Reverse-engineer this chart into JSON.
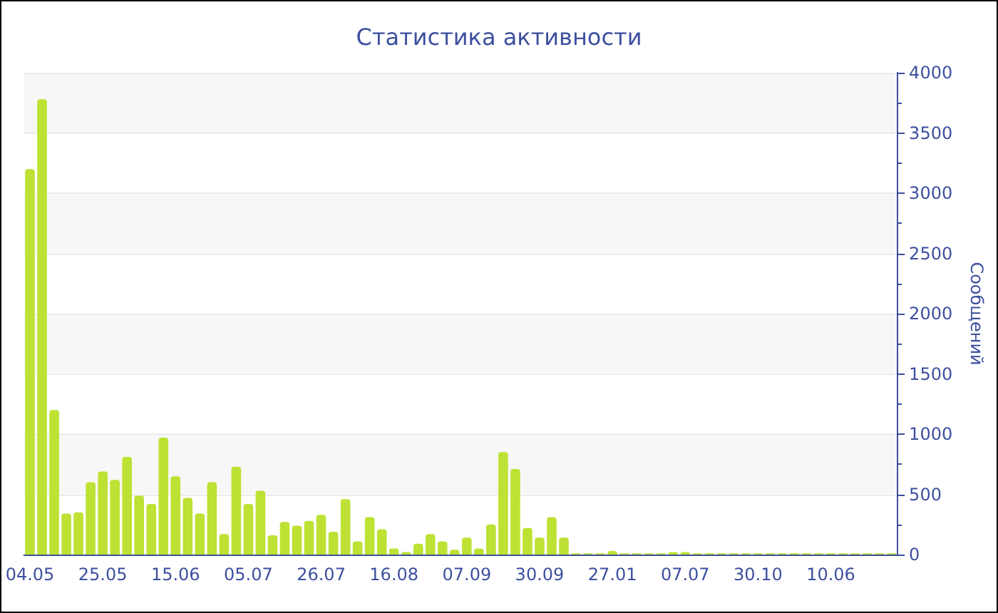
{
  "chart_data": {
    "type": "bar",
    "title": "Статистика активности",
    "ylabel": "Сообщений",
    "categories": [
      "04.05",
      null,
      null,
      null,
      null,
      null,
      "25.05",
      null,
      null,
      null,
      null,
      null,
      "15.06",
      null,
      null,
      null,
      null,
      null,
      "05.07",
      null,
      null,
      null,
      null,
      null,
      "26.07",
      null,
      null,
      null,
      null,
      null,
      "16.08",
      null,
      null,
      null,
      null,
      null,
      "07.09",
      null,
      null,
      null,
      null,
      null,
      "30.09",
      null,
      null,
      null,
      null,
      null,
      "27.01",
      null,
      null,
      null,
      null,
      null,
      "07.07",
      null,
      null,
      null,
      null,
      null,
      "30.10",
      null,
      null,
      null,
      null,
      null,
      "10.06",
      null,
      null,
      null,
      null,
      null
    ],
    "values": [
      3200,
      3780,
      1200,
      340,
      350,
      600,
      690,
      620,
      810,
      490,
      420,
      970,
      650,
      470,
      340,
      600,
      170,
      730,
      420,
      530,
      160,
      270,
      240,
      280,
      330,
      190,
      460,
      110,
      310,
      210,
      50,
      20,
      90,
      170,
      110,
      40,
      140,
      50,
      250,
      850,
      710,
      220,
      140,
      310,
      140,
      10,
      10,
      10,
      30,
      10,
      10,
      10,
      10,
      20,
      20,
      10,
      10,
      10,
      10,
      10,
      10,
      10,
      10,
      10,
      10,
      10,
      10,
      10,
      10,
      10,
      10,
      10
    ],
    "color": "#bde234",
    "ylim": [
      0,
      4000
    ],
    "yticks": [
      0,
      500,
      1000,
      1500,
      2000,
      2500,
      3000,
      3500,
      4000
    ],
    "grid": "y"
  }
}
